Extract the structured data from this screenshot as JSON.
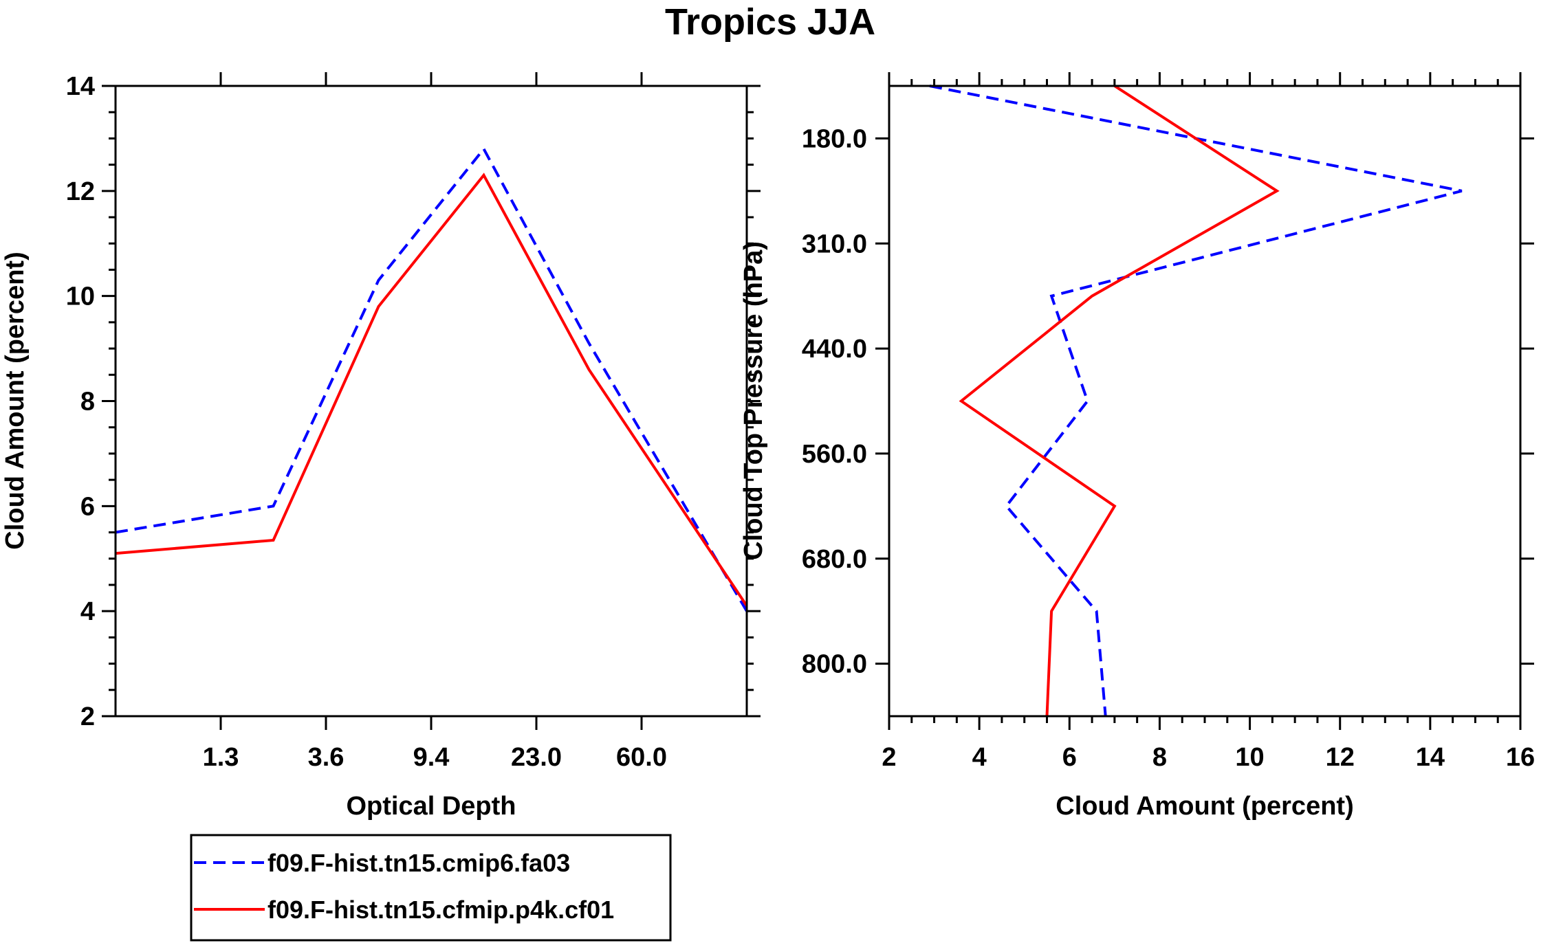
{
  "title": "Tropics JJA",
  "legend": {
    "entries": [
      {
        "name": "f09.F-hist.tn15.cmip6.fa03",
        "color": "#0000ff",
        "dash": true
      },
      {
        "name": "f09.F-hist.tn15.cfmip.p4k.cf01",
        "color": "#ff0000",
        "dash": false
      }
    ]
  },
  "chart_data": [
    {
      "type": "line",
      "title": "Tropics JJA",
      "xlabel": "Optical Depth",
      "ylabel": "Cloud Amount (percent)",
      "xlim": [
        0,
        6
      ],
      "ylim": [
        2,
        14
      ],
      "xticks": [
        1,
        2,
        3,
        4,
        5
      ],
      "xtick_labels": [
        "1.3",
        "3.6",
        "9.4",
        "23.0",
        "60.0"
      ],
      "yticks": [
        2,
        4,
        6,
        8,
        10,
        12,
        14
      ],
      "ytick_labels": [
        "2",
        "4",
        "6",
        "8",
        "10",
        "12",
        "14"
      ],
      "x": [
        0,
        1.5,
        2.5,
        3.5,
        4.5,
        6
      ],
      "series": [
        {
          "name": "f09.F-hist.tn15.cmip6.fa03",
          "values": [
            5.5,
            6.0,
            10.3,
            12.8,
            9.1,
            4.0
          ]
        },
        {
          "name": "f09.F-hist.tn15.cfmip.p4k.cf01",
          "values": [
            5.1,
            5.35,
            9.8,
            12.3,
            8.6,
            4.1
          ]
        }
      ]
    },
    {
      "type": "line",
      "orientation": "vertical-profile",
      "xlabel": "Cloud Amount (percent)",
      "ylabel": "Cloud Top Pressure (hPa)",
      "xlim": [
        2,
        16
      ],
      "ylim": [
        0,
        12
      ],
      "xticks": [
        2,
        4,
        6,
        8,
        10,
        12,
        14,
        16
      ],
      "xtick_labels": [
        "2",
        "4",
        "6",
        "8",
        "10",
        "12",
        "14",
        "16"
      ],
      "yticks": [
        1,
        3,
        5,
        7,
        9,
        11
      ],
      "ytick_labels": [
        "180.0",
        "310.0",
        "440.0",
        "560.0",
        "680.0",
        "800.0"
      ],
      "y": [
        0,
        2,
        4,
        6,
        8,
        10,
        12
      ],
      "series": [
        {
          "name": "f09.F-hist.tn15.cmip6.fa03",
          "values": [
            2.9,
            14.7,
            5.6,
            6.4,
            4.6,
            6.6,
            6.8
          ]
        },
        {
          "name": "f09.F-hist.tn15.cfmip.p4k.cf01",
          "values": [
            7.0,
            10.6,
            6.5,
            3.6,
            7.0,
            5.6,
            5.5
          ]
        }
      ]
    }
  ]
}
